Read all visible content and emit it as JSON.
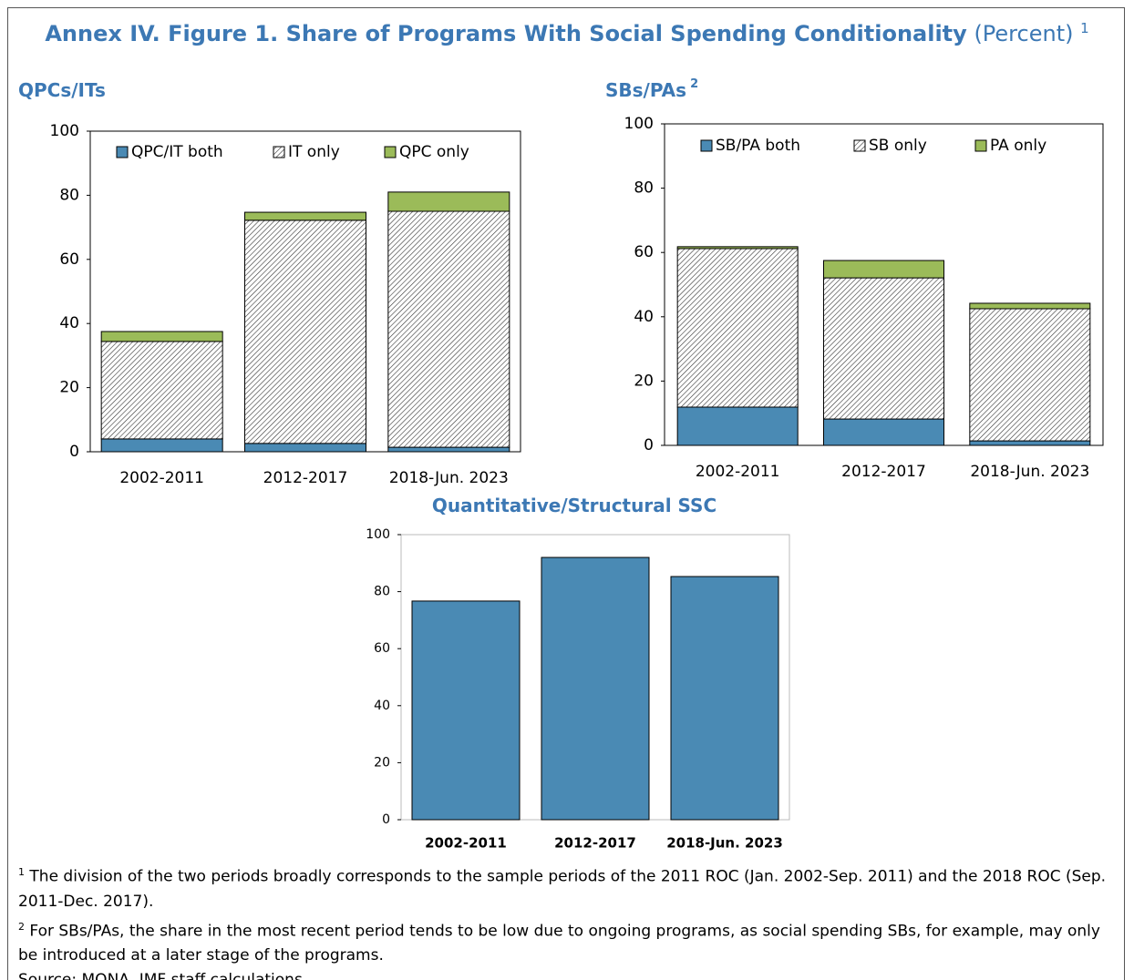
{
  "title": "Annex IV. Figure 1. Share of Programs With Social Spending Conditionality",
  "title_unit": "(Percent)",
  "title_mark": "1",
  "chart_data": [
    {
      "type": "stacked_bar",
      "title": "QPCs/ITs",
      "categories": [
        "2002-2011",
        "2012-2017",
        "2018-Jun. 2023"
      ],
      "series": [
        {
          "name": "QPC/IT both",
          "color": "#4a8ab4",
          "values": [
            4,
            2.6,
            1.4
          ]
        },
        {
          "name": "IT only",
          "color": "#ffffff",
          "pattern": "hatch",
          "values": [
            30.4,
            69.6,
            73.6
          ]
        },
        {
          "name": "QPC only",
          "color": "#9bbb59",
          "values": [
            3.1,
            2.5,
            6
          ]
        }
      ],
      "ylim": [
        0,
        100
      ],
      "yticks": [
        0,
        20,
        40,
        60,
        80,
        100
      ],
      "legend": "top"
    },
    {
      "type": "stacked_bar",
      "title": "SBs/PAs",
      "title_note": "2",
      "categories": [
        "2002-2011",
        "2012-2017",
        "2018-Jun. 2023"
      ],
      "series": [
        {
          "name": "SB/PA both",
          "color": "#4a8ab4",
          "values": [
            11.9,
            8.2,
            1.4
          ]
        },
        {
          "name": "SB only",
          "color": "#ffffff",
          "pattern": "hatch",
          "values": [
            49.3,
            43.9,
            41.1
          ]
        },
        {
          "name": "PA only",
          "color": "#9bbb59",
          "values": [
            0.6,
            5.4,
            1.7
          ]
        }
      ],
      "ylim": [
        0,
        100
      ],
      "yticks": [
        0,
        20,
        40,
        60,
        80,
        100
      ],
      "legend": "top"
    },
    {
      "type": "bar",
      "title": "Quantitative/Structural SSC",
      "categories": [
        "2002-2011",
        "2012-2017",
        "2018-Jun. 2023"
      ],
      "values": [
        76.7,
        92,
        85.3
      ],
      "color": "#4a8ab4",
      "ylim": [
        0,
        100
      ],
      "yticks": [
        0,
        20,
        40,
        60,
        80,
        100
      ]
    }
  ],
  "footnotes": [
    {
      "mark": "1",
      "text": "The division of the two periods broadly corresponds to the sample periods of the 2011 ROC (Jan. 2002-Sep. 2011) and the 2018 ROC (Sep. 2011-Dec. 2017)."
    },
    {
      "mark": "2",
      "text": "For SBs/PAs, the share in the most recent period tends to be low due to ongoing programs, as social spending SBs, for example, may only be introduced at a later stage of the programs."
    }
  ],
  "source": "Source: MONA, IMF staff calculations."
}
